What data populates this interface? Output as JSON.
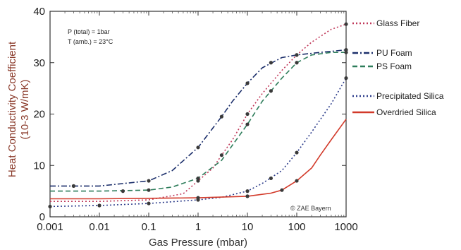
{
  "chart_data": {
    "type": "line",
    "xlabel": "Gas Pressure (mbar)",
    "ylabel_line1": "Heat Conductivity Coefficient",
    "ylabel_line2": "(10-3 W/mK)",
    "xscale": "log",
    "xlim": [
      0.001,
      1000
    ],
    "ylim": [
      0,
      40
    ],
    "x_ticks": [
      0.001,
      0.01,
      0.1,
      1,
      10,
      100,
      1000
    ],
    "x_tick_labels": [
      "0.001",
      "0.01",
      "0.1",
      "1",
      "10",
      "100",
      "1000"
    ],
    "y_ticks": [
      0,
      10,
      20,
      30,
      40
    ],
    "y_tick_labels": [
      "0",
      "10",
      "20",
      "30",
      "40"
    ],
    "grid": false,
    "legend_position": "right, outside plot",
    "annotations": [
      "P (total) = 1bar",
      "T (amb.) = 23°C"
    ],
    "credit": "© ZAE Bayern",
    "series": [
      {
        "name": "Glass Fiber",
        "color": "#c0395a",
        "dash": "dot",
        "x": [
          0.001,
          0.01,
          0.1,
          0.5,
          1,
          2,
          3,
          5,
          10,
          20,
          50,
          100,
          200,
          500,
          1000
        ],
        "y": [
          3.0,
          3.0,
          3.3,
          4.5,
          7.0,
          9.5,
          12.0,
          15.0,
          20.0,
          24.0,
          28.5,
          31.5,
          34.0,
          36.5,
          37.5
        ],
        "markers_x": [
          1,
          3,
          10,
          100,
          1000
        ],
        "markers_y": [
          7.0,
          12.0,
          20.0,
          31.5,
          37.5
        ]
      },
      {
        "name": "PU Foam",
        "color": "#1c2f6b",
        "dash": "dashdot",
        "x": [
          0.001,
          0.01,
          0.1,
          0.3,
          1,
          3,
          5,
          10,
          20,
          50,
          100,
          300,
          1000
        ],
        "y": [
          6.0,
          6.0,
          7.0,
          9.0,
          13.5,
          19.5,
          22.5,
          26.0,
          29.0,
          31.0,
          31.5,
          32.0,
          32.5
        ],
        "markers_x": [
          0.003,
          0.1,
          1,
          3,
          10,
          30,
          100,
          1000
        ],
        "markers_y": [
          6.0,
          7.0,
          13.5,
          19.5,
          26.0,
          30.0,
          31.5,
          32.5
        ]
      },
      {
        "name": "PS Foam",
        "color": "#2e7d5b",
        "dash": "dash",
        "x": [
          0.001,
          0.01,
          0.1,
          0.3,
          1,
          3,
          10,
          20,
          50,
          100,
          200,
          500,
          1000
        ],
        "y": [
          5.0,
          5.0,
          5.2,
          5.8,
          7.5,
          11.0,
          18.0,
          22.5,
          27.0,
          30.0,
          31.5,
          32.0,
          32.0
        ],
        "markers_x": [
          0.03,
          0.1,
          1,
          10,
          30,
          100,
          1000
        ],
        "markers_y": [
          5.0,
          5.2,
          7.5,
          18.0,
          24.5,
          30.0,
          32.0
        ]
      },
      {
        "name": "Precipitated Silica",
        "color": "#2b3b8a",
        "dash": "dot",
        "x": [
          0.001,
          0.01,
          0.1,
          1,
          3,
          10,
          20,
          50,
          100,
          200,
          500,
          1000
        ],
        "y": [
          2.0,
          2.2,
          2.6,
          3.3,
          3.8,
          5.0,
          6.5,
          9.0,
          12.5,
          16.5,
          22.0,
          27.0
        ],
        "markers_x": [
          0.001,
          0.01,
          0.1,
          1,
          10,
          30,
          100,
          1000
        ],
        "markers_y": [
          2.0,
          2.2,
          2.6,
          3.3,
          5.0,
          7.5,
          12.5,
          27.0
        ]
      },
      {
        "name": "Overdried Silica",
        "color": "#d23a2a",
        "dash": "solid",
        "x": [
          0.001,
          0.01,
          0.1,
          1,
          10,
          30,
          50,
          100,
          200,
          300,
          500,
          1000
        ],
        "y": [
          3.5,
          3.5,
          3.6,
          3.7,
          4.0,
          4.6,
          5.2,
          7.0,
          9.5,
          12.0,
          15.0,
          19.0
        ],
        "markers_x": [
          1,
          10,
          50,
          100
        ],
        "markers_y": [
          3.7,
          4.0,
          5.2,
          7.0
        ]
      }
    ]
  }
}
